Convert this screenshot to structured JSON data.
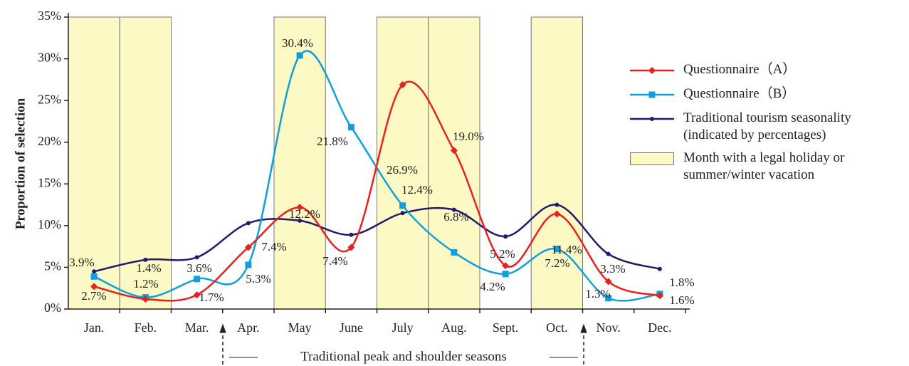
{
  "chart_data": {
    "type": "line",
    "y_label": "Proportion of selection",
    "categories": [
      "Jan.",
      "Feb.",
      "Mar.",
      "Apr.",
      "May",
      "June",
      "July",
      "Aug.",
      "Sept.",
      "Oct.",
      "Nov.",
      "Dec."
    ],
    "series": [
      {
        "name": "Questionnaire（A）",
        "color": "#e8201e",
        "marker": "diamond",
        "values": [
          2.7,
          1.2,
          1.7,
          7.4,
          12.2,
          7.4,
          26.9,
          19.0,
          5.2,
          11.4,
          3.3,
          1.6
        ],
        "value_labels": [
          "2.7%",
          "1.2%",
          "1.7%",
          "7.4%",
          "12.2%",
          "7.4%",
          "26.9%",
          "19.0%",
          "5.2%",
          "11.4%",
          "3.3%",
          "1.6%"
        ]
      },
      {
        "name": "Questionnaire（B）",
        "color": "#109fdc",
        "marker": "square",
        "values": [
          3.9,
          1.4,
          3.6,
          5.3,
          30.4,
          21.8,
          12.4,
          6.8,
          4.2,
          7.2,
          1.3,
          1.8
        ],
        "value_labels": [
          "3.9%",
          "1.4%",
          "3.6%",
          "5.3%",
          "30.4%",
          "21.8%",
          "12.4%",
          "6.8%",
          "4.2%",
          "7.2%",
          "1.3%",
          "1.8%"
        ]
      },
      {
        "name": "Traditional tourism seasonality (indicated by percentages)",
        "color": "#231a6e",
        "marker": "circle",
        "values": [
          4.5,
          5.9,
          6.2,
          10.3,
          10.6,
          8.9,
          11.5,
          11.9,
          8.7,
          12.5,
          6.6,
          4.8
        ]
      }
    ],
    "highlight": {
      "label": "Month with a legal holiday or summer/winter vacation",
      "color": "#fdf9c4",
      "categories": [
        "Jan.",
        "Feb.",
        "May",
        "July",
        "Aug.",
        "Oct."
      ]
    },
    "ylim": [
      0,
      35
    ],
    "yticks": [
      {
        "value": 0,
        "label": "0%"
      },
      {
        "value": 5,
        "label": "5%"
      },
      {
        "value": 10,
        "label": "10%"
      },
      {
        "value": 15,
        "label": "15%"
      },
      {
        "value": 20,
        "label": "20%"
      },
      {
        "value": 25,
        "label": "25%"
      },
      {
        "value": 30,
        "label": "30%"
      },
      {
        "value": 35,
        "label": "35%"
      }
    ],
    "annotation": "Traditional peak and shoulder seasons",
    "legend": "right"
  }
}
